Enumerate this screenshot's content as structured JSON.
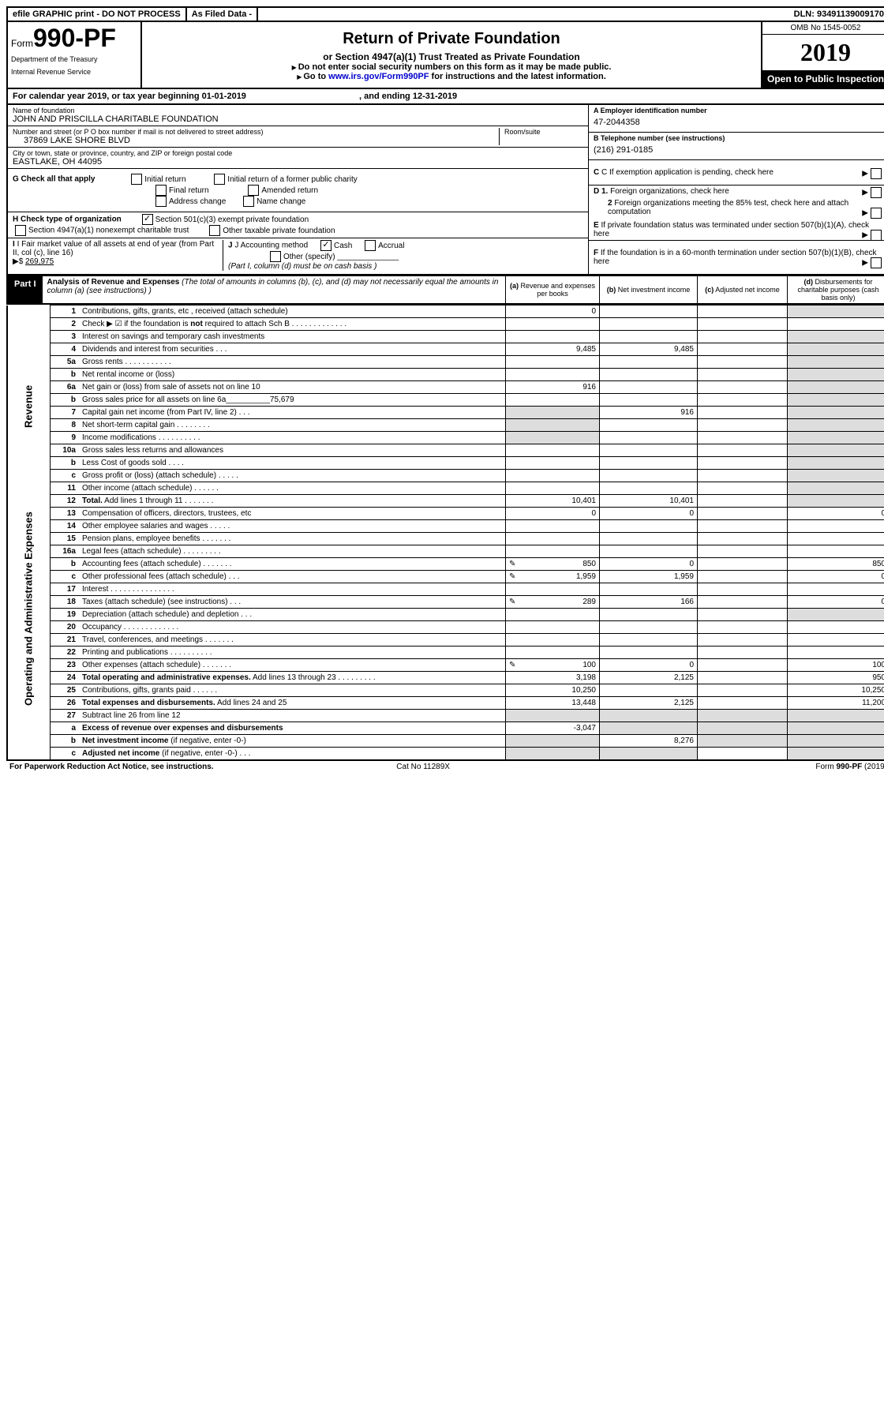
{
  "topbar": {
    "efile": "efile GRAPHIC print - DO NOT PROCESS",
    "asfiled": "As Filed Data -",
    "dln_label": "DLN: ",
    "dln": "93491139009170"
  },
  "header": {
    "form_prefix": "Form",
    "form_no": "990-PF",
    "dept1": "Department of the Treasury",
    "dept2": "Internal Revenue Service",
    "title": "Return of Private Foundation",
    "subtitle": "or Section 4947(a)(1) Trust Treated as Private Foundation",
    "note1": "Do not enter social security numbers on this form as it may be made public.",
    "note2_pre": "Go to ",
    "note2_link": "www.irs.gov/Form990PF",
    "note2_post": " for instructions and the latest information.",
    "omb": "OMB No 1545-0052",
    "year": "2019",
    "inspect": "Open to Public Inspection"
  },
  "cal": {
    "prefix": "For calendar year 2019, or tax year beginning ",
    "begin": "01-01-2019",
    "mid": " , and ending ",
    "end": "12-31-2019"
  },
  "info": {
    "name_label": "Name of foundation",
    "name": "JOHN AND PRISCILLA CHARITABLE FOUNDATION",
    "addr_label": "Number and street (or P O  box number if mail is not delivered to street address)",
    "room_label": "Room/suite",
    "addr": "37869 LAKE SHORE BLVD",
    "city_label": "City or town, state or province, country, and ZIP or foreign postal code",
    "city": "EASTLAKE, OH  44095",
    "a_label": "A Employer identification number",
    "a": "47-2044358",
    "b_label": "B Telephone number (see instructions)",
    "b": "(216) 291-0185",
    "c": "C If exemption application is pending, check here",
    "d1": "D 1. Foreign organizations, check here",
    "d2": "2 Foreign organizations meeting the 85% test, check here and attach computation",
    "e": "E  If private foundation status was terminated under section 507(b)(1)(A), check here",
    "f": "F  If the foundation is in a 60-month termination under section 507(b)(1)(B), check here"
  },
  "g": {
    "label": "G Check all that apply",
    "opts": [
      "Initial return",
      "Initial return of a former public charity",
      "Final return",
      "Amended return",
      "Address change",
      "Name change"
    ]
  },
  "h": {
    "label": "H Check type of organization",
    "opt1": "Section 501(c)(3) exempt private foundation",
    "opt2": "Section 4947(a)(1) nonexempt charitable trust",
    "opt3": "Other taxable private foundation"
  },
  "i": {
    "label": "I Fair market value of all assets at end of year (from Part II, col  (c), line 16)",
    "val_prefix": "▶$ ",
    "val": "269,975",
    "j_label": "J Accounting method",
    "j_cash": "Cash",
    "j_accrual": "Accrual",
    "j_other": "Other (specify)",
    "j_note": "(Part I, column (d) must be on cash basis )"
  },
  "part1": {
    "tag": "Part I",
    "title": "Analysis of Revenue and Expenses",
    "note": " (The total of amounts in columns (b), (c), and (d) may not necessarily equal the amounts in column (a) (see instructions) )",
    "colA": "(a) Revenue and expenses per books",
    "colB": "(b) Net investment income",
    "colC": "(c) Adjusted net income",
    "colD": "(d) Disbursements for charitable purposes (cash basis only)"
  },
  "groups": {
    "rev": "Revenue",
    "exp": "Operating and Administrative Expenses"
  },
  "rows": [
    {
      "g": "rev",
      "rs": 14,
      "n": "1",
      "t": "Contributions, gifts, grants, etc , received (attach schedule)",
      "a": "0",
      "dgrey": true
    },
    {
      "n": "2",
      "t": "Check ▶ ☑ if the foundation is <b>not</b> required to attach Sch B    .  .  .  .  .  .  .  .  .  .  .  .  .",
      "nobord": true
    },
    {
      "n": "3",
      "t": "Interest on savings and temporary cash investments",
      "dgrey": true
    },
    {
      "n": "4",
      "t": "Dividends and interest from securities   .  .  .",
      "a": "9,485",
      "b": "9,485",
      "dgrey": true
    },
    {
      "n": "5a",
      "t": "Gross rents    .  .  .  .  .  .  .  .  .  .  .",
      "dgrey": true
    },
    {
      "n": "b",
      "t": "Net rental income or (loss) ",
      "dgrey": true
    },
    {
      "n": "6a",
      "t": "Net gain or (loss) from sale of assets not on line 10",
      "a": "916",
      "dgrey": true
    },
    {
      "n": "b",
      "t": "Gross sales price for all assets on line 6a__________75,679",
      "dgrey": true
    },
    {
      "n": "7",
      "t": "Capital gain net income (from Part IV, line 2)   .  .  .",
      "b": "916",
      "agrey": true,
      "dgrey": true
    },
    {
      "n": "8",
      "t": "Net short-term capital gain  .  .  .  .  .  .  .  .",
      "agrey": true,
      "dgrey": true
    },
    {
      "n": "9",
      "t": "Income modifications .  .  .  .  .  .  .  .  .  .",
      "agrey": true,
      "dgrey": true
    },
    {
      "n": "10a",
      "t": "Gross sales less returns and allowances ",
      "dgrey": true
    },
    {
      "n": "b",
      "t": "Less  Cost of goods sold    .  .  .  .",
      "dgrey": true
    },
    {
      "n": "c",
      "t": "Gross profit or (loss) (attach schedule)   .  .  .  .  .",
      "dgrey": true
    },
    {
      "n": "11",
      "t": "Other income (attach schedule)    .  .  .  .  .  .",
      "dgrey": true
    },
    {
      "n": "12",
      "t": "<b>Total.</b> Add lines 1 through 11   .  .  .  .  .  .  .",
      "a": "10,401",
      "b": "10,401",
      "dgrey": true
    },
    {
      "g": "exp",
      "rs": 14,
      "n": "13",
      "t": "Compensation of officers, directors, trustees, etc",
      "a": "0",
      "b": "0",
      "d": "0"
    },
    {
      "n": "14",
      "t": "Other employee salaries and wages    .  .  .  .  ."
    },
    {
      "n": "15",
      "t": "Pension plans, employee benefits .  .  .  .  .  .  ."
    },
    {
      "n": "16a",
      "t": "Legal fees (attach schedule) .  .  .  .  .  .  .  .  ."
    },
    {
      "n": "b",
      "t": "Accounting fees (attach schedule) .  .  .  .  .  .  .",
      "icon": true,
      "a": "850",
      "b": "0",
      "d": "850"
    },
    {
      "n": "c",
      "t": "Other professional fees (attach schedule)   .  .  .",
      "icon": true,
      "a": "1,959",
      "b": "1,959",
      "d": "0"
    },
    {
      "n": "17",
      "t": "Interest .  .  .  .  .  .  .  .  .  .  .  .  .  .  ."
    },
    {
      "n": "18",
      "t": "Taxes (attach schedule) (see instructions)    .  .  .",
      "icon": true,
      "a": "289",
      "b": "166",
      "d": "0"
    },
    {
      "n": "19",
      "t": "Depreciation (attach schedule) and depletion   .  .  .",
      "dgrey": true
    },
    {
      "n": "20",
      "t": "Occupancy  .  .  .  .  .  .  .  .  .  .  .  .  ."
    },
    {
      "n": "21",
      "t": "Travel, conferences, and meetings .  .  .  .  .  .  ."
    },
    {
      "n": "22",
      "t": "Printing and publications .  .  .  .  .  .  .  .  .  ."
    },
    {
      "n": "23",
      "t": "Other expenses (attach schedule) .  .  .  .  .  .  .",
      "icon": true,
      "a": "100",
      "b": "0",
      "d": "100"
    },
    {
      "n": "24",
      "t": "<b>Total operating and administrative expenses.</b> Add lines 13 through 23  .  .  .  .  .  .  .  .  .",
      "a": "3,198",
      "b": "2,125",
      "d": "950"
    },
    {
      "n": "25",
      "t": "Contributions, gifts, grants paid    .  .  .  .  .  .",
      "a": "10,250",
      "d": "10,250"
    },
    {
      "n": "26",
      "t": "<b>Total expenses and disbursements.</b> Add lines 24 and 25",
      "a": "13,448",
      "b": "2,125",
      "d": "11,200"
    },
    {
      "n": "27",
      "t": "Subtract line 26 from line 12",
      "allgrey": true
    },
    {
      "n": "a",
      "t": "<b>Excess of revenue over expenses and disbursements</b>",
      "a": "-3,047",
      "bgrey": true,
      "cgrey": true,
      "dgrey": true
    },
    {
      "n": "b",
      "t": "<b>Net investment income</b> (if negative, enter -0-)",
      "b": "8,276",
      "agrey": true,
      "cgrey": true,
      "dgrey": true
    },
    {
      "n": "c",
      "t": "<b>Adjusted net income</b> (if negative, enter -0-)  .  .  .",
      "agrey": true,
      "bgrey": true,
      "dgrey": true
    }
  ],
  "footer": {
    "left": "For Paperwork Reduction Act Notice, see instructions.",
    "mid": "Cat No  11289X",
    "right_pre": "Form ",
    "right_bold": "990-PF",
    "right_post": " (2019)"
  }
}
